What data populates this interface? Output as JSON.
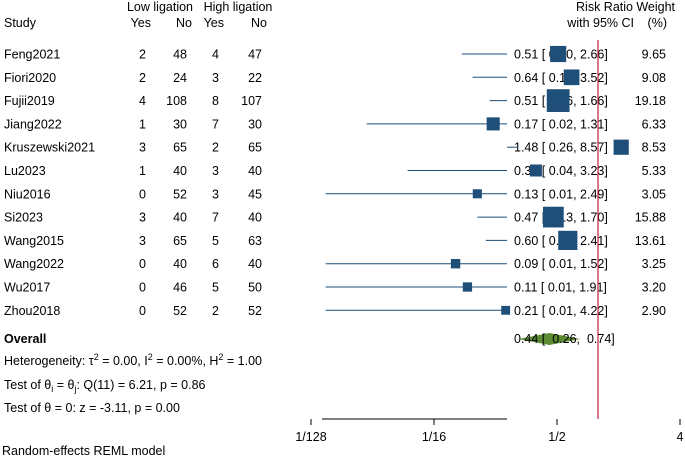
{
  "chart_data": {
    "type": "forest",
    "x_scale": "log2",
    "xlim": [
      0.00390625,
      8
    ],
    "x_ticks": [
      {
        "value": 0.0078125,
        "label": "1/128"
      },
      {
        "value": 0.0625,
        "label": "1/16"
      },
      {
        "value": 0.5,
        "label": "1/2"
      },
      {
        "value": 4,
        "label": "4"
      }
    ],
    "null_line": 1,
    "headers": {
      "study": "Study",
      "group1": "Low ligation",
      "group2": "High ligation",
      "yes": "Yes",
      "no": "No",
      "effect_line1": "Risk Ratio",
      "effect_line2": "with 95% CI",
      "weight_line1": "Weight",
      "weight_line2": "(%)"
    },
    "studies": [
      {
        "name": "Feng2021",
        "g1_yes": "2",
        "g1_no": "48",
        "g2_yes": "4",
        "g2_no": "47",
        "rr": 0.51,
        "lo": 0.1,
        "hi": 2.66,
        "ci_text": "0.51 [  0.10,  2.66]",
        "weight": 9.65,
        "weight_text": "9.65"
      },
      {
        "name": "Fiori2020",
        "g1_yes": "2",
        "g1_no": "24",
        "g2_yes": "3",
        "g2_no": "22",
        "rr": 0.64,
        "lo": 0.12,
        "hi": 3.52,
        "ci_text": "0.64 [  0.12,  3.52]",
        "weight": 9.08,
        "weight_text": "9.08"
      },
      {
        "name": "Fujii2019",
        "g1_yes": "4",
        "g1_no": "108",
        "g2_yes": "8",
        "g2_no": "107",
        "rr": 0.51,
        "lo": 0.16,
        "hi": 1.66,
        "ci_text": "0.51 [  0.16,  1.66]",
        "weight": 19.18,
        "weight_text": "19.18"
      },
      {
        "name": "Jiang2022",
        "g1_yes": "1",
        "g1_no": "30",
        "g2_yes": "7",
        "g2_no": "30",
        "rr": 0.17,
        "lo": 0.02,
        "hi": 1.31,
        "ci_text": "0.17 [  0.02,  1.31]",
        "weight": 6.33,
        "weight_text": "6.33"
      },
      {
        "name": "Kruszewski2021",
        "g1_yes": "3",
        "g1_no": "65",
        "g2_yes": "2",
        "g2_no": "65",
        "rr": 1.48,
        "lo": 0.26,
        "hi": 8.57,
        "ci_text": "1.48 [  0.26,  8.57]",
        "weight": 8.53,
        "weight_text": "8.53"
      },
      {
        "name": "Lu2023",
        "g1_yes": "1",
        "g1_no": "40",
        "g2_yes": "3",
        "g2_no": "40",
        "rr": 0.35,
        "lo": 0.04,
        "hi": 3.23,
        "ci_text": "0.35 [  0.04,  3.23]",
        "weight": 5.33,
        "weight_text": "5.33"
      },
      {
        "name": "Niu2016",
        "g1_yes": "0",
        "g1_no": "52",
        "g2_yes": "3",
        "g2_no": "45",
        "rr": 0.13,
        "lo": 0.01,
        "hi": 2.49,
        "ci_text": "0.13 [  0.01,  2.49]",
        "weight": 3.05,
        "weight_text": "3.05"
      },
      {
        "name": "Si2023",
        "g1_yes": "3",
        "g1_no": "40",
        "g2_yes": "7",
        "g2_no": "40",
        "rr": 0.47,
        "lo": 0.13,
        "hi": 1.7,
        "ci_text": "0.47 [  0.13,  1.70]",
        "weight": 15.88,
        "weight_text": "15.88"
      },
      {
        "name": "Wang2015",
        "g1_yes": "3",
        "g1_no": "65",
        "g2_yes": "5",
        "g2_no": "63",
        "rr": 0.6,
        "lo": 0.15,
        "hi": 2.41,
        "ci_text": "0.60 [  0.15,  2.41]",
        "weight": 13.61,
        "weight_text": "13.61"
      },
      {
        "name": "Wang2022",
        "g1_yes": "0",
        "g1_no": "40",
        "g2_yes": "6",
        "g2_no": "40",
        "rr": 0.09,
        "lo": 0.01,
        "hi": 1.52,
        "ci_text": "0.09 [  0.01,  1.52]",
        "weight": 3.25,
        "weight_text": "3.25"
      },
      {
        "name": "Wu2017",
        "g1_yes": "0",
        "g1_no": "46",
        "g2_yes": "5",
        "g2_no": "50",
        "rr": 0.11,
        "lo": 0.01,
        "hi": 1.91,
        "ci_text": "0.11 [  0.01,  1.91]",
        "weight": 3.2,
        "weight_text": "3.20"
      },
      {
        "name": "Zhou2018",
        "g1_yes": "0",
        "g1_no": "52",
        "g2_yes": "2",
        "g2_no": "52",
        "rr": 0.21,
        "lo": 0.01,
        "hi": 4.22,
        "ci_text": "0.21 [  0.01,  4.22]",
        "weight": 2.9,
        "weight_text": "2.90"
      }
    ],
    "overall": {
      "label": "Overall",
      "rr": 0.44,
      "lo": 0.26,
      "hi": 0.74,
      "ci_text": "0.44 [  0.26,  0.74]"
    },
    "heterogeneity": {
      "prefix": "Heterogeneity: τ",
      "tau_sup": "2",
      "mid1": " = 0.00, I",
      "i_sup": "2",
      "mid2": " = 0.00%, H",
      "h_sup": "2",
      "suffix": " = 1.00"
    },
    "homogeneity_test": {
      "prefix": "Test of θ",
      "sub1": "i",
      "mid": " = θ",
      "sub2": "j",
      "suffix": ": Q(11) = 6.21, p = 0.86"
    },
    "effect_test": "Test of θ = 0: z = -3.11, p = 0.00",
    "model_note": "Random-effects REML model",
    "colors": {
      "marker": "#1f4e79",
      "ci_line": "#1f4e79",
      "diamond": "#5a8a32",
      "null_line": "#c0213a",
      "axis": "#000000"
    }
  }
}
